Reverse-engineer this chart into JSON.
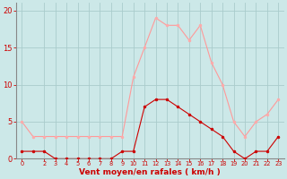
{
  "x": [
    0,
    1,
    2,
    3,
    4,
    5,
    6,
    7,
    8,
    9,
    10,
    11,
    12,
    13,
    14,
    15,
    16,
    17,
    18,
    19,
    20,
    21,
    22,
    23
  ],
  "wind_avg": [
    1,
    1,
    1,
    0,
    0,
    0,
    0,
    0,
    0,
    1,
    1,
    7,
    8,
    8,
    7,
    6,
    5,
    4,
    3,
    1,
    0,
    1,
    1,
    3
  ],
  "wind_gust": [
    5,
    3,
    3,
    3,
    3,
    3,
    3,
    3,
    3,
    3,
    11,
    15,
    19,
    18,
    18,
    16,
    18,
    13,
    10,
    5,
    3,
    5,
    6,
    8
  ],
  "bg_color": "#cce8e8",
  "grid_color": "#aacccc",
  "line_avg_color": "#cc0000",
  "line_gust_color": "#ff9999",
  "marker_avg_color": "#cc0000",
  "marker_gust_color": "#ffaaaa",
  "xlabel": "Vent moyen/en rafales ( km/h )",
  "xlabel_color": "#cc0000",
  "tick_color": "#cc0000",
  "ylim": [
    0,
    21
  ],
  "xlim": [
    -0.5,
    23.5
  ],
  "yticks": [
    0,
    5,
    10,
    15,
    20
  ],
  "xticks": [
    0,
    2,
    3,
    4,
    5,
    6,
    7,
    8,
    9,
    10,
    11,
    12,
    13,
    14,
    15,
    16,
    17,
    18,
    19,
    20,
    21,
    22,
    23
  ]
}
